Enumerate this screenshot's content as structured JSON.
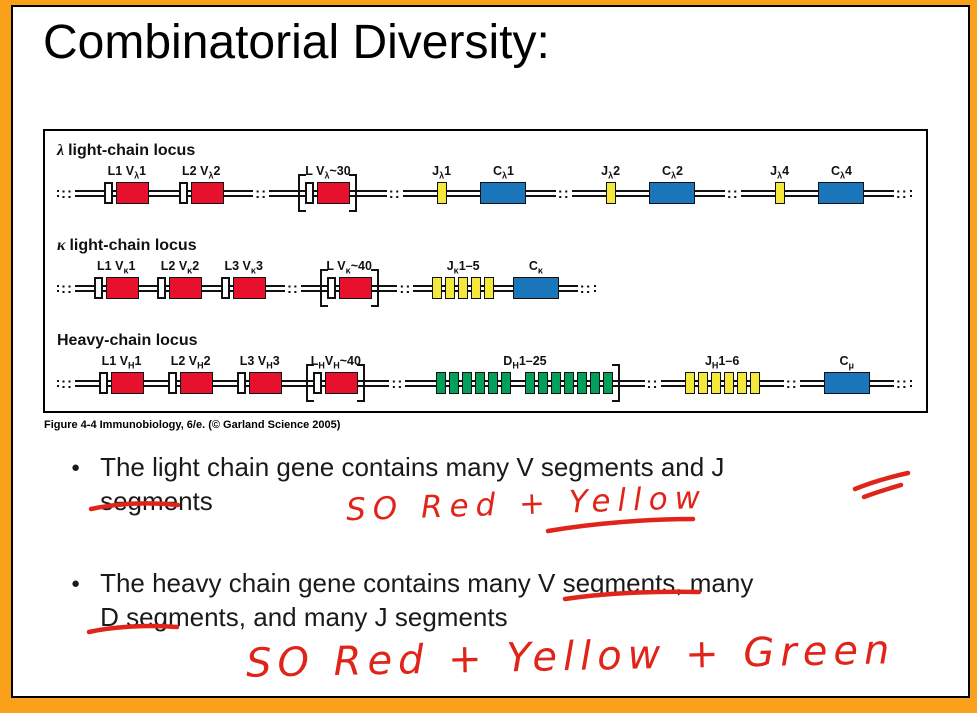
{
  "frame": {
    "accent_color": "#f9a11b"
  },
  "title": "Combinatorial Diversity:",
  "figure": {
    "caption": "Figure 4-4  Immunobiology, 6/e. (© Garland Science 2005)",
    "break_glyph": "::",
    "colors": {
      "v": "#e8112d",
      "j": "#f4e93a",
      "c": "#1b75bb",
      "d": "#00a05a"
    },
    "loci": [
      {
        "symbol": "λ",
        "name": "light-chain locus",
        "track_width": "100%",
        "items": [
          {
            "brk": true
          },
          {
            "label": "L1 V{λ}1",
            "parts": [
              "L",
              "V"
            ]
          },
          {
            "label": "L2 V{λ}2",
            "parts": [
              "L",
              "V"
            ]
          },
          {
            "brk": true
          },
          {
            "label": "L V{λ}~30",
            "parts": [
              "L",
              "V"
            ],
            "bracket": "both"
          },
          {
            "brk": true
          },
          {
            "label": "J{λ}1",
            "parts": [
              "J"
            ]
          },
          {
            "label": "C{λ}1",
            "parts": [
              "C"
            ]
          },
          {
            "brk": true
          },
          {
            "label": "J{λ}2",
            "parts": [
              "J"
            ]
          },
          {
            "label": "C{λ}2",
            "parts": [
              "C"
            ]
          },
          {
            "brk": true
          },
          {
            "label": "J{λ}4",
            "parts": [
              "J"
            ]
          },
          {
            "label": "C{λ}4",
            "parts": [
              "C"
            ]
          },
          {
            "brk": true
          }
        ]
      },
      {
        "symbol": "κ",
        "name": "light-chain locus",
        "track_width": "63%",
        "items": [
          {
            "brk": true
          },
          {
            "label": "L1 V{κ}1",
            "parts": [
              "L",
              "V"
            ]
          },
          {
            "label": "L2 V{κ}2",
            "parts": [
              "L",
              "V"
            ]
          },
          {
            "label": "L3 V{κ}3",
            "parts": [
              "L",
              "V"
            ]
          },
          {
            "brk": true
          },
          {
            "label": "L V{κ}~40",
            "parts": [
              "L",
              "V"
            ],
            "bracket": "both"
          },
          {
            "brk": true
          },
          {
            "label": "J{κ}1–5",
            "parts": [
              "J",
              "J",
              "J",
              "J",
              "J"
            ]
          },
          {
            "label": "C{κ}",
            "parts": [
              "C"
            ]
          },
          {
            "brk": true
          }
        ]
      },
      {
        "symbol": "",
        "name": "Heavy-chain locus",
        "track_width": "100%",
        "items": [
          {
            "brk": true
          },
          {
            "label": "L1 V{H}1",
            "parts": [
              "L",
              "V"
            ]
          },
          {
            "label": "L2 V{H}2",
            "parts": [
              "L",
              "V"
            ]
          },
          {
            "label": "L3 V{H}3",
            "parts": [
              "L",
              "V"
            ]
          },
          {
            "label": "L{H}V{H}~40",
            "parts": [
              "L",
              "V"
            ],
            "bracket": "both"
          },
          {
            "brk": true
          },
          {
            "label": "D{H}1–25",
            "parts": [
              "D",
              "D",
              "D",
              "D",
              "D",
              "D",
              "gap",
              "D",
              "D",
              "D",
              "D",
              "D",
              "D",
              "D"
            ],
            "bracket": "right"
          },
          {
            "brk": true
          },
          {
            "label": "J{H}1–6",
            "parts": [
              "J",
              "J",
              "J",
              "J",
              "J",
              "J"
            ]
          },
          {
            "brk": true
          },
          {
            "label": "C{μ}",
            "parts": [
              "C"
            ]
          },
          {
            "brk": true
          }
        ]
      }
    ]
  },
  "bullets": [
    {
      "marker": "●",
      "lines": [
        "The light chain gene contains many V segments and J",
        "segments"
      ]
    },
    {
      "marker": "●",
      "lines": [
        "The heavy chain gene contains many V segments, many",
        "D segments, and many J segments"
      ]
    }
  ],
  "annotations": {
    "ink_color": "#e02419",
    "note1": "SO Red + Yellow",
    "note2": "SO Red + Yellow + Green"
  }
}
